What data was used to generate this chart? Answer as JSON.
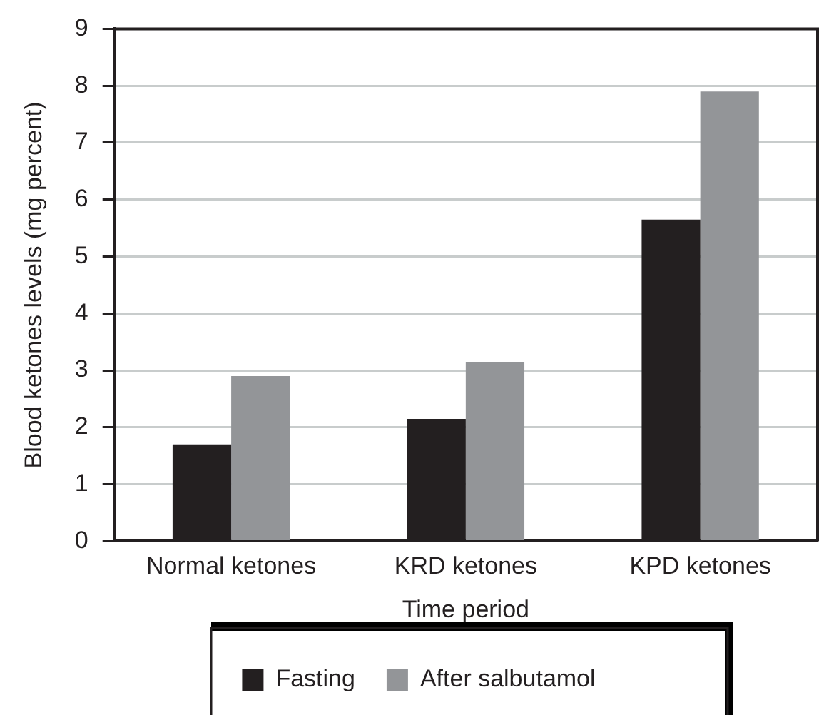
{
  "chart_data": {
    "type": "bar",
    "xlabel": "Time period",
    "ylabel": "Blood ketones levels (mg percent)",
    "categories": [
      "Normal ketones",
      "KRD ketones",
      "KPD ketones"
    ],
    "series": [
      {
        "name": "Fasting",
        "color": "#231f20",
        "values": [
          1.7,
          2.15,
          5.65
        ]
      },
      {
        "name": "After salbutamol",
        "color": "#939598",
        "values": [
          2.9,
          3.15,
          7.9
        ]
      }
    ],
    "ylim": [
      0,
      9
    ],
    "yticks": [
      0,
      1,
      2,
      3,
      4,
      5,
      6,
      7,
      8,
      9
    ],
    "grid": "y",
    "legend": "bottom"
  }
}
